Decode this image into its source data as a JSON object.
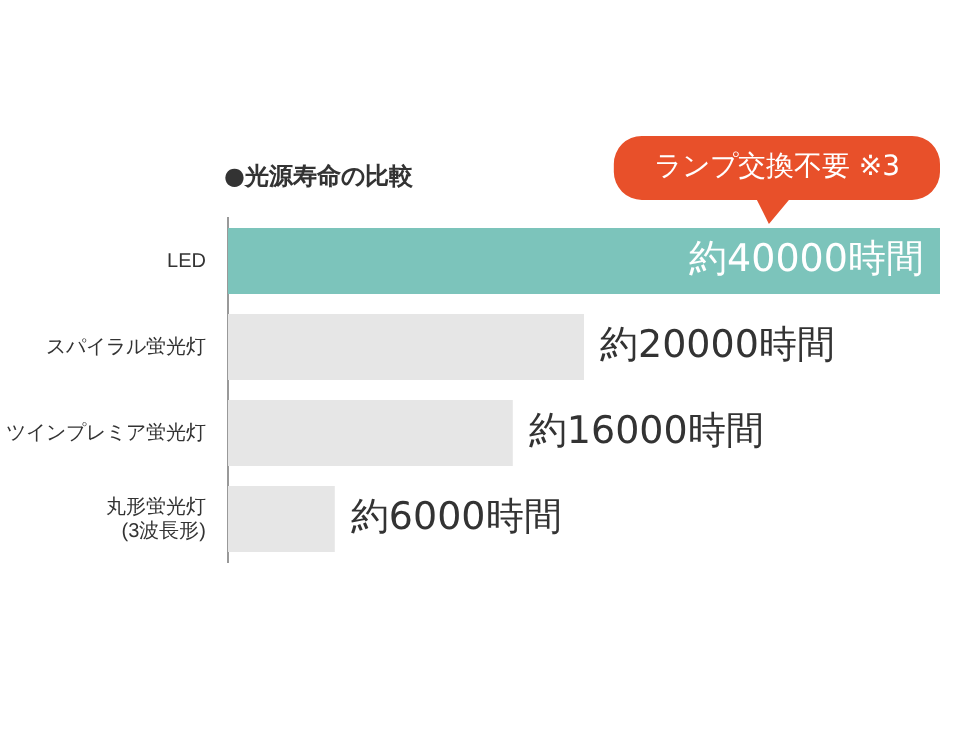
{
  "chart_data": {
    "type": "bar",
    "orientation": "horizontal",
    "title": "●光源寿命の比較",
    "categories": [
      "LED",
      "スパイラル蛍光灯",
      "ツインプレミア蛍光灯",
      "丸形蛍光灯(3波長形)"
    ],
    "values": [
      40000,
      20000,
      16000,
      6000
    ],
    "colors": [
      "#7cc4bb",
      "#e6e6e6",
      "#e6e6e6",
      "#e6e6e6"
    ],
    "value_labels": [
      "約40000時間",
      "約20000時間",
      "約16000時間",
      "約6000時間"
    ],
    "annotations": [
      "ランプ交換不要 ※3"
    ],
    "grid": false,
    "legend": false
  }
}
